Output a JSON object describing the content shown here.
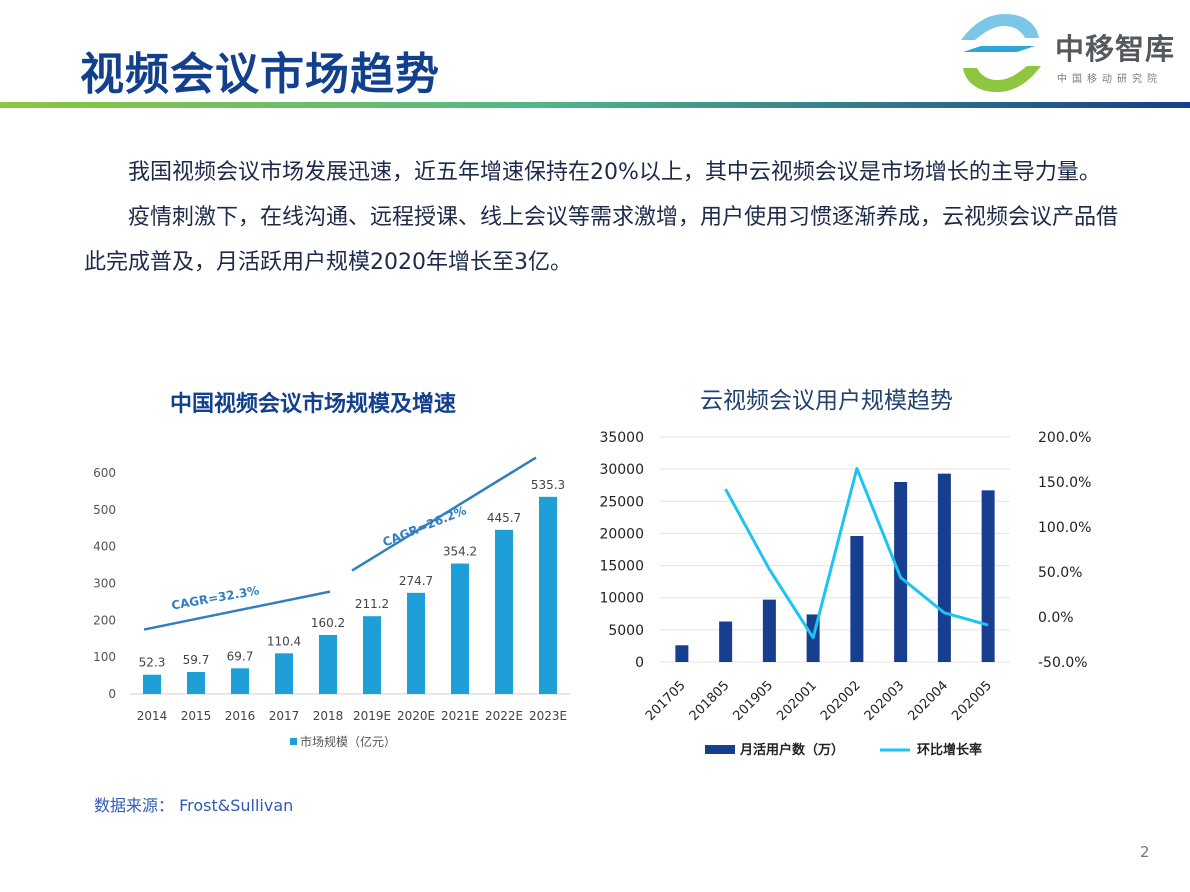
{
  "header": {
    "title": "视频会议市场趋势",
    "brand_name": "中移智库",
    "brand_sub": "中国移动研究院",
    "colors": {
      "title": "#13408d",
      "rule_green": "#8dc63f",
      "rule_blue": "#13408d"
    }
  },
  "body": {
    "paragraph_1": "我国视频会议市场发展迅速，近五年增速保持在20%以上，其中云视频会议是市场增长的主导力量。",
    "paragraph_2": "疫情刺激下，在线沟通、远程授课、线上会议等需求激增，用户使用习惯逐渐养成，云视频会议产品借此完成普及，月活跃用户规模2020年增长至3亿。"
  },
  "chart_data": [
    {
      "type": "bar",
      "title": "中国视频会议市场规模及增速",
      "categories": [
        "2014",
        "2015",
        "2016",
        "2017",
        "2018",
        "2019E",
        "2020E",
        "2021E",
        "2022E",
        "2023E"
      ],
      "series": [
        {
          "name": "市场规模（亿元）",
          "values": [
            52.3,
            59.7,
            69.7,
            110.4,
            160.2,
            211.2,
            274.7,
            354.2,
            445.7,
            535.3
          ],
          "labels": [
            "52.3",
            "59.7",
            "69.7",
            "110.4",
            "160.2",
            "211.2",
            "274.7",
            "354.2",
            "445.7",
            "535.3"
          ]
        }
      ],
      "ylim": [
        0,
        600
      ],
      "y_ticks": [
        "0",
        "100",
        "200",
        "300",
        "400",
        "500",
        "600"
      ],
      "annotations": [
        "CAGR=32.3%",
        "CAGR=26.2%"
      ],
      "legend_position": "bottom",
      "color": "#1f9fd8",
      "annotation_color": "#2f7fc1"
    },
    {
      "type": "bar",
      "title": "云视频会议用户规模趋势",
      "categories": [
        "201705",
        "201805",
        "201905",
        "202001",
        "202002",
        "202003",
        "202004",
        "202005"
      ],
      "series": [
        {
          "name": "月活用户数（万）",
          "axis": "left",
          "values": [
            2600,
            6300,
            9700,
            7400,
            19600,
            28000,
            29300,
            26700
          ]
        },
        {
          "name": "环比增长率",
          "axis": "right",
          "type": "line",
          "values": [
            null,
            142,
            53,
            -23,
            165,
            44,
            4.6,
            -8.9
          ]
        }
      ],
      "ylim_left": [
        0,
        35000
      ],
      "ylim_right": [
        -50,
        200
      ],
      "y_ticks_left": [
        "0",
        "5000",
        "10000",
        "15000",
        "20000",
        "25000",
        "30000",
        "35000"
      ],
      "y_ticks_right": [
        "-50.0%",
        "0.0%",
        "50.0%",
        "100.0%",
        "150.0%",
        "200.0%"
      ],
      "legend_position": "bottom",
      "bar_color": "#173e8f",
      "line_color": "#1fc3f1"
    }
  ],
  "footer": {
    "source": "数据来源： Frost&Sullivan",
    "page_number": "2"
  }
}
